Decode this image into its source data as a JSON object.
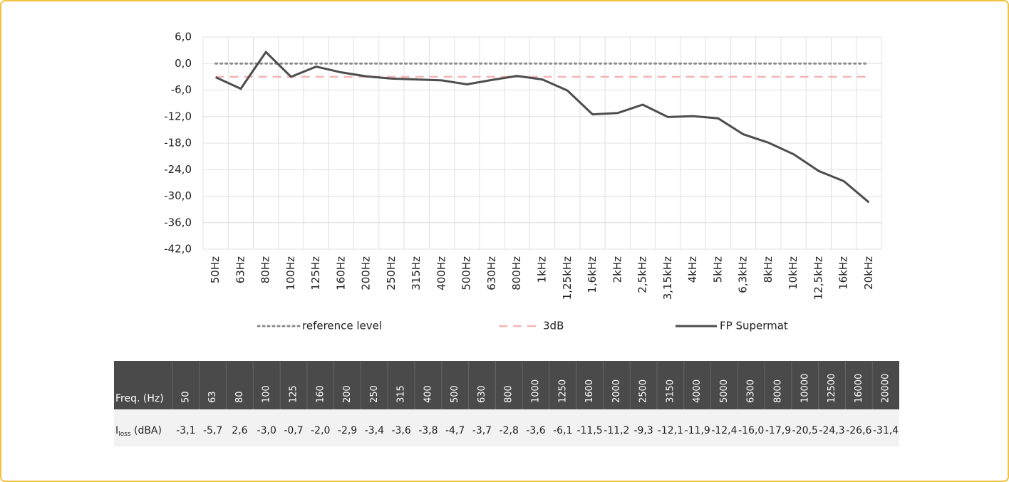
{
  "chart_data": {
    "type": "line",
    "categories": [
      "50Hz",
      "63Hz",
      "80Hz",
      "100Hz",
      "125Hz",
      "160Hz",
      "200Hz",
      "250Hz",
      "315Hz",
      "400Hz",
      "500Hz",
      "630Hz",
      "800Hz",
      "1kHz",
      "1,25kHz",
      "1,6kHz",
      "2kHz",
      "2,5kHz",
      "3,15kHz",
      "4kHz",
      "5kHz",
      "6,3kHz",
      "8kHz",
      "10kHz",
      "12,5kHz",
      "16kHz",
      "20kHz"
    ],
    "series": [
      {
        "name": "reference level",
        "color": "#8c8c8c",
        "style": "dotted",
        "values": [
          0,
          0,
          0,
          0,
          0,
          0,
          0,
          0,
          0,
          0,
          0,
          0,
          0,
          0,
          0,
          0,
          0,
          0,
          0,
          0,
          0,
          0,
          0,
          0,
          0,
          0,
          0
        ]
      },
      {
        "name": "3dB",
        "color": "#f4b5b5",
        "style": "dashed",
        "values": [
          -3,
          -3,
          -3,
          -3,
          -3,
          -3,
          -3,
          -3,
          -3,
          -3,
          -3,
          -3,
          -3,
          -3,
          -3,
          -3,
          -3,
          -3,
          -3,
          -3,
          -3,
          -3,
          -3,
          -3,
          -3,
          -3,
          -3
        ]
      },
      {
        "name": "FP Supermat",
        "color": "#4d4d4d",
        "style": "solid",
        "values": [
          -3.1,
          -5.7,
          2.6,
          -3.0,
          -0.7,
          -2.0,
          -2.9,
          -3.4,
          -3.6,
          -3.8,
          -4.7,
          -3.7,
          -2.8,
          -3.6,
          -6.1,
          -11.5,
          -11.2,
          -9.3,
          -12.1,
          -11.9,
          -12.4,
          -16.0,
          -17.9,
          -20.5,
          -24.3,
          -26.6,
          -31.4
        ]
      }
    ],
    "ylim": [
      -42,
      6
    ],
    "yticks": [
      {
        "value": 6,
        "label": "6,0"
      },
      {
        "value": 0,
        "label": "0,0"
      },
      {
        "value": -6,
        "label": "-6,0"
      },
      {
        "value": -12,
        "label": "-12,0"
      },
      {
        "value": -18,
        "label": "-18,0"
      },
      {
        "value": -24,
        "label": "-24,0"
      },
      {
        "value": -30,
        "label": "-30,0"
      },
      {
        "value": -36,
        "label": "-36,0"
      },
      {
        "value": -42,
        "label": "-42,0"
      }
    ],
    "grid": true
  },
  "table": {
    "header_label": "Freq. (Hz)",
    "header": [
      "50",
      "63",
      "80",
      "100",
      "125",
      "160",
      "200",
      "250",
      "315",
      "400",
      "500",
      "630",
      "800",
      "1000",
      "1250",
      "1600",
      "2000",
      "2500",
      "3150",
      "4000",
      "5000",
      "6300",
      "8000",
      "10000",
      "12500",
      "16000",
      "20000"
    ],
    "row_label": {
      "main": "I",
      "sub": "loss",
      "unit": " (dBA)"
    },
    "row": [
      "-3,1",
      "-5,7",
      "2,6",
      "-3,0",
      "-0,7",
      "-2,0",
      "-2,9",
      "-3,4",
      "-3,6",
      "-3,8",
      "-4,7",
      "-3,7",
      "-2,8",
      "-3,6",
      "-6,1",
      "-11,5",
      "-11,2",
      "-9,3",
      "-12,1",
      "-11,9",
      "-12,4",
      "-16,0",
      "-17,9",
      "-20,5",
      "-24,3",
      "-26,6",
      "-31,4"
    ]
  }
}
